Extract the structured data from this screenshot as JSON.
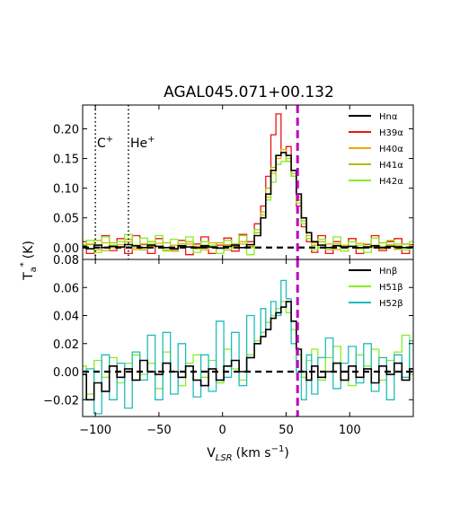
{
  "chart_data": {
    "type": "line",
    "title": "AGAL045.071+00.132",
    "xlabel": "V",
    "xlabel_sub": "LSR",
    "xlabel_units": "(km s",
    "xlabel_units_sup": "−1",
    "xlabel_units_close": ")",
    "ylabel": "T",
    "ylabel_sub": "a",
    "ylabel_sup": "*",
    "ylabel_units": "(K)",
    "xlim": [
      -110,
      150
    ],
    "xticks": [
      -100,
      -50,
      0,
      50,
      100
    ],
    "xtick_labels": [
      "−100",
      "−50",
      "0",
      "50",
      "100"
    ],
    "zero_line": true,
    "vertical_lines": [
      {
        "x": -100,
        "style": "dotted",
        "color": "#000000",
        "label": "C",
        "label_sup": "+"
      },
      {
        "x": -74,
        "style": "dotted",
        "color": "#000000",
        "label": "He",
        "label_sup": "+"
      },
      {
        "x": 59,
        "style": "dashed",
        "color": "#bf00bf",
        "label": ""
      }
    ],
    "panels": [
      {
        "id": "alpha",
        "ylim": [
          -0.02,
          0.24
        ],
        "yticks": [
          0.0,
          0.05,
          0.1,
          0.15,
          0.2
        ],
        "ytick_labels": [
          "0.00",
          "0.05",
          "0.10",
          "0.15",
          "0.20"
        ],
        "legend_position": "top-right",
        "legend": [
          {
            "label": "Hnα",
            "color": "#000000"
          },
          {
            "label": "H39α",
            "color": "#ee1111"
          },
          {
            "label": "H40α",
            "color": "#f0a800"
          },
          {
            "label": "H41α",
            "color": "#b8b800"
          },
          {
            "label": "H42α",
            "color": "#88ee22"
          }
        ],
        "series": [
          {
            "name": "Hnα",
            "color": "#000000",
            "width": 1.6,
            "x": [
              -110,
              -104,
              -98,
              -92,
              -86,
              -80,
              -74,
              -68,
              -62,
              -56,
              -50,
              -44,
              -38,
              -32,
              -26,
              -20,
              -14,
              -8,
              -2,
              4,
              10,
              16,
              22,
              28,
              32,
              36,
              40,
              44,
              48,
              52,
              56,
              60,
              64,
              68,
              72,
              78,
              84,
              90,
              96,
              102,
              108,
              114,
              120,
              126,
              132,
              138,
              144,
              150
            ],
            "y": [
              0.002,
              -0.002,
              0.004,
              0.0,
              0.002,
              0.001,
              0.005,
              0.003,
              0.0,
              0.004,
              0.002,
              0.0,
              -0.002,
              0.003,
              0.001,
              0.0,
              0.003,
              0.001,
              -0.001,
              0.002,
              0.004,
              0.0,
              0.005,
              0.02,
              0.05,
              0.09,
              0.13,
              0.155,
              0.16,
              0.155,
              0.13,
              0.09,
              0.05,
              0.025,
              0.01,
              0.004,
              0.0,
              0.003,
              0.001,
              0.002,
              0.0,
              0.001,
              0.003,
              0.0,
              0.002,
              0.001,
              0.0,
              0.001
            ]
          },
          {
            "name": "H39α",
            "color": "#ee1111",
            "width": 1.3,
            "x": [
              -110,
              -104,
              -98,
              -92,
              -86,
              -80,
              -74,
              -68,
              -62,
              -56,
              -50,
              -44,
              -38,
              -32,
              -26,
              -20,
              -14,
              -8,
              -2,
              4,
              10,
              16,
              22,
              28,
              32,
              36,
              40,
              44,
              48,
              52,
              56,
              60,
              64,
              68,
              72,
              78,
              84,
              90,
              96,
              102,
              108,
              114,
              120,
              126,
              132,
              138,
              144,
              150
            ],
            "y": [
              0.01,
              -0.01,
              0.0,
              0.02,
              -0.005,
              0.015,
              -0.01,
              0.02,
              0.005,
              -0.01,
              0.015,
              0.0,
              -0.005,
              0.012,
              -0.012,
              0.006,
              0.018,
              -0.01,
              0.004,
              0.016,
              -0.006,
              0.022,
              0.01,
              0.04,
              0.07,
              0.12,
              0.19,
              0.225,
              0.16,
              0.17,
              0.12,
              0.07,
              0.035,
              0.01,
              -0.008,
              0.02,
              -0.01,
              0.01,
              0.0,
              0.015,
              -0.01,
              0.005,
              0.02,
              -0.005,
              0.01,
              0.015,
              -0.01,
              0.005
            ]
          },
          {
            "name": "H40α",
            "color": "#f0a800",
            "width": 1.3,
            "x": [
              -110,
              -104,
              -98,
              -92,
              -86,
              -80,
              -74,
              -68,
              -62,
              -56,
              -50,
              -44,
              -38,
              -32,
              -26,
              -20,
              -14,
              -8,
              -2,
              4,
              10,
              16,
              22,
              28,
              32,
              36,
              40,
              44,
              48,
              52,
              56,
              60,
              64,
              68,
              72,
              78,
              84,
              90,
              96,
              102,
              108,
              114,
              120,
              126,
              132,
              138,
              144,
              150
            ],
            "y": [
              0.003,
              0.006,
              -0.004,
              0.008,
              0.0,
              0.005,
              0.01,
              -0.003,
              0.006,
              0.002,
              0.007,
              -0.004,
              0.004,
              0.0,
              0.006,
              0.002,
              -0.004,
              0.008,
              0.0,
              0.005,
              0.002,
              0.006,
              0.0,
              0.03,
              0.055,
              0.085,
              0.125,
              0.15,
              0.165,
              0.15,
              0.13,
              0.085,
              0.05,
              0.02,
              0.008,
              0.0,
              0.006,
              -0.003,
              0.004,
              0.002,
              0.007,
              0.0,
              0.004,
              -0.002,
              0.005,
              0.003,
              0.0,
              0.002
            ]
          },
          {
            "name": "H41α",
            "color": "#b8b800",
            "width": 1.3,
            "x": [
              -110,
              -104,
              -98,
              -92,
              -86,
              -80,
              -74,
              -68,
              -62,
              -56,
              -50,
              -44,
              -38,
              -32,
              -26,
              -20,
              -14,
              -8,
              -2,
              4,
              10,
              16,
              22,
              28,
              32,
              36,
              40,
              44,
              48,
              52,
              56,
              60,
              64,
              68,
              72,
              78,
              84,
              90,
              96,
              102,
              108,
              114,
              120,
              126,
              132,
              138,
              144,
              150
            ],
            "y": [
              0.0,
              0.005,
              0.012,
              -0.005,
              0.008,
              0.0,
              0.014,
              0.004,
              -0.004,
              0.01,
              0.002,
              0.008,
              -0.006,
              0.006,
              0.01,
              -0.002,
              0.004,
              0.0,
              0.008,
              -0.004,
              0.006,
              0.01,
              0.002,
              0.025,
              0.06,
              0.1,
              0.135,
              0.155,
              0.16,
              0.145,
              0.125,
              0.08,
              0.045,
              0.015,
              0.004,
              0.01,
              -0.004,
              0.006,
              0.002,
              0.01,
              -0.002,
              0.006,
              0.0,
              0.008,
              0.002,
              -0.003,
              0.006,
              0.0
            ]
          },
          {
            "name": "H42α",
            "color": "#88ee22",
            "width": 1.3,
            "x": [
              -110,
              -104,
              -98,
              -92,
              -86,
              -80,
              -74,
              -68,
              -62,
              -56,
              -50,
              -44,
              -38,
              -32,
              -26,
              -20,
              -14,
              -8,
              -2,
              4,
              10,
              16,
              22,
              28,
              32,
              36,
              40,
              44,
              48,
              52,
              56,
              60,
              64,
              68,
              72,
              78,
              84,
              90,
              96,
              102,
              108,
              114,
              120,
              126,
              132,
              138,
              144,
              150
            ],
            "y": [
              0.005,
              0.012,
              -0.008,
              0.018,
              0.004,
              0.01,
              0.022,
              0.0,
              0.016,
              0.006,
              0.02,
              -0.006,
              0.014,
              0.002,
              0.018,
              -0.008,
              0.01,
              0.004,
              -0.01,
              0.012,
              0.0,
              0.02,
              -0.012,
              0.03,
              0.05,
              0.08,
              0.11,
              0.14,
              0.145,
              0.15,
              0.12,
              0.075,
              0.04,
              0.015,
              -0.004,
              0.014,
              0.0,
              0.018,
              -0.006,
              0.01,
              0.004,
              -0.008,
              0.016,
              0.002,
              0.012,
              0.006,
              -0.004,
              0.01
            ]
          }
        ]
      },
      {
        "id": "beta",
        "ylim": [
          -0.032,
          0.08
        ],
        "yticks": [
          -0.02,
          0.0,
          0.02,
          0.04,
          0.06
        ],
        "ytick_labels": [
          "−0.02",
          "0.00",
          "0.02",
          "0.04",
          "0.06"
        ],
        "top_tick_label": "0.08",
        "legend_position": "top-right",
        "legend": [
          {
            "label": "Hnβ",
            "color": "#000000"
          },
          {
            "label": "H51β",
            "color": "#88ee22"
          },
          {
            "label": "H52β",
            "color": "#22bbbb"
          }
        ],
        "series": [
          {
            "name": "Hnβ",
            "color": "#000000",
            "width": 1.6,
            "x": [
              -110,
              -104,
              -98,
              -92,
              -86,
              -80,
              -74,
              -68,
              -62,
              -56,
              -50,
              -44,
              -38,
              -32,
              -26,
              -20,
              -14,
              -8,
              -2,
              4,
              10,
              16,
              22,
              28,
              32,
              36,
              40,
              44,
              48,
              52,
              56,
              60,
              64,
              68,
              72,
              78,
              84,
              90,
              96,
              102,
              108,
              114,
              120,
              126,
              132,
              138,
              144,
              150
            ],
            "y": [
              -0.002,
              -0.02,
              -0.008,
              -0.014,
              0.004,
              -0.004,
              0.002,
              -0.006,
              0.008,
              0.0,
              -0.002,
              0.006,
              0.0,
              -0.004,
              0.004,
              -0.006,
              -0.01,
              0.002,
              -0.006,
              0.004,
              0.008,
              0.0,
              0.01,
              0.02,
              0.025,
              0.03,
              0.038,
              0.042,
              0.046,
              0.05,
              0.036,
              0.016,
              0.0,
              -0.006,
              0.004,
              -0.004,
              0.0,
              0.006,
              -0.006,
              0.004,
              -0.004,
              0.002,
              -0.008,
              0.004,
              -0.002,
              0.006,
              -0.006,
              0.002
            ]
          },
          {
            "name": "H51β",
            "color": "#88ee22",
            "width": 1.3,
            "x": [
              -110,
              -104,
              -98,
              -92,
              -86,
              -80,
              -74,
              -68,
              -62,
              -56,
              -50,
              -44,
              -38,
              -32,
              -26,
              -20,
              -14,
              -8,
              -2,
              4,
              10,
              16,
              22,
              28,
              32,
              36,
              40,
              44,
              48,
              52,
              56,
              60,
              64,
              68,
              72,
              78,
              84,
              90,
              96,
              102,
              108,
              114,
              120,
              126,
              132,
              138,
              144,
              150
            ],
            "y": [
              0.004,
              -0.016,
              0.008,
              -0.004,
              0.01,
              -0.008,
              0.006,
              0.012,
              -0.002,
              0.006,
              -0.012,
              0.014,
              0.0,
              -0.01,
              0.006,
              0.012,
              -0.004,
              0.008,
              -0.008,
              0.016,
              0.002,
              -0.006,
              0.012,
              0.022,
              0.028,
              0.035,
              0.04,
              0.045,
              0.05,
              0.042,
              0.03,
              0.012,
              -0.004,
              0.008,
              0.016,
              -0.006,
              0.01,
              0.018,
              0.0,
              -0.01,
              0.012,
              0.004,
              0.016,
              -0.006,
              0.008,
              0.014,
              0.026,
              -0.002
            ]
          },
          {
            "name": "H52β",
            "color": "#22bbbb",
            "width": 1.3,
            "x": [
              -110,
              -104,
              -98,
              -92,
              -86,
              -80,
              -74,
              -68,
              -62,
              -56,
              -50,
              -44,
              -38,
              -32,
              -26,
              -20,
              -14,
              -8,
              -2,
              4,
              10,
              16,
              22,
              28,
              32,
              36,
              40,
              44,
              48,
              52,
              56,
              60,
              64,
              68,
              72,
              78,
              84,
              90,
              96,
              102,
              108,
              114,
              120,
              126,
              132,
              138,
              144,
              150
            ],
            "y": [
              -0.02,
              0.002,
              -0.03,
              0.012,
              -0.02,
              0.006,
              -0.026,
              0.014,
              -0.006,
              0.026,
              -0.02,
              0.028,
              -0.016,
              0.02,
              0.004,
              -0.018,
              0.012,
              -0.014,
              0.036,
              -0.004,
              0.028,
              -0.01,
              0.04,
              0.02,
              0.045,
              0.03,
              0.05,
              0.04,
              0.065,
              0.052,
              0.02,
              0.0,
              -0.02,
              0.012,
              -0.016,
              0.01,
              0.024,
              -0.012,
              0.006,
              0.018,
              -0.008,
              0.02,
              -0.014,
              0.01,
              -0.02,
              0.012,
              -0.004,
              0.022
            ]
          }
        ]
      }
    ]
  }
}
